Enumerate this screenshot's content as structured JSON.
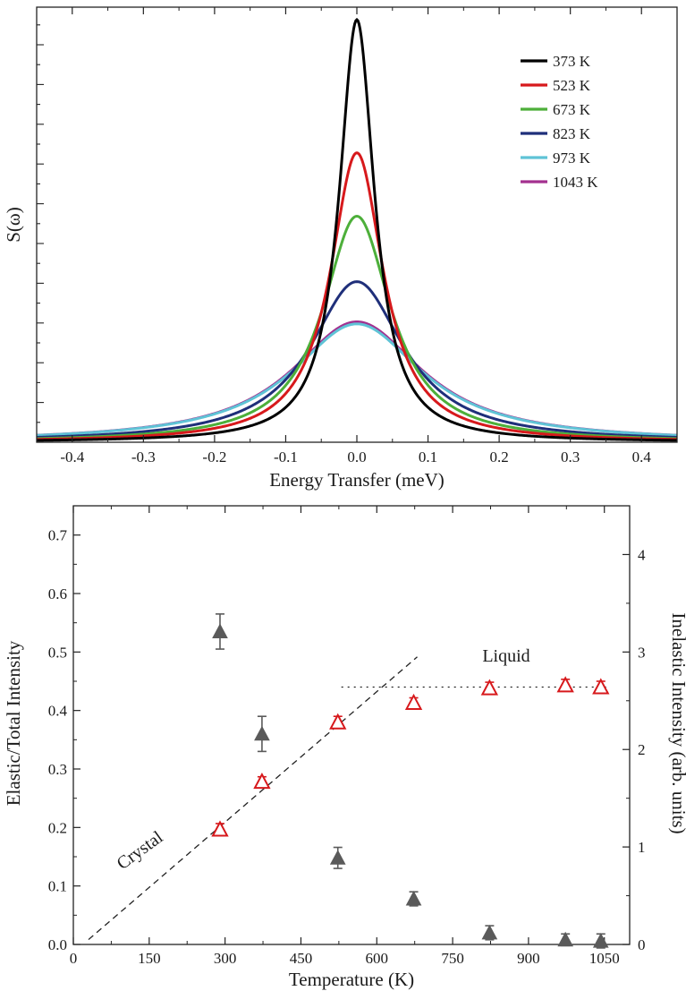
{
  "chart_data": [
    {
      "type": "line",
      "title": "",
      "xlabel": "Energy Transfer (meV)",
      "ylabel": "S(ω)",
      "xlim": [
        -0.45,
        0.45
      ],
      "ylim": [
        0,
        1.0
      ],
      "x_ticks": [
        "-0.4",
        "-0.3",
        "-0.2",
        "-0.1",
        "0.0",
        "0.1",
        "0.2",
        "0.3",
        "0.4"
      ],
      "y_tick_labels_shown": false,
      "legend_position": "top-right",
      "series": [
        {
          "name": "373 K",
          "color": "#000000",
          "peak": 1.0,
          "hwhm": 0.03
        },
        {
          "name": "523 K",
          "color": "#d7191c",
          "peak": 0.685,
          "hwhm": 0.045
        },
        {
          "name": "673 K",
          "color": "#4daf3a",
          "peak": 0.535,
          "hwhm": 0.058
        },
        {
          "name": "823 K",
          "color": "#1f2f7a",
          "peak": 0.38,
          "hwhm": 0.08
        },
        {
          "name": "973 K",
          "color": "#5fc3d6",
          "peak": 0.28,
          "hwhm": 0.112
        },
        {
          "name": "1043 K",
          "color": "#a3308f",
          "peak": 0.285,
          "hwhm": 0.112
        }
      ]
    },
    {
      "type": "scatter",
      "title": "",
      "xlabel": "Temperature (K)",
      "ylabel": "Elastic/Total Intensity",
      "ylabel_right": "Inelastic Intensity (arb. units)",
      "xlim": [
        0,
        1100
      ],
      "ylim": [
        0,
        0.75
      ],
      "ylim_right": [
        0,
        4.5
      ],
      "x_ticks": [
        "0",
        "150",
        "300",
        "450",
        "600",
        "750",
        "900",
        "1050"
      ],
      "y_ticks": [
        "0.0",
        "0.1",
        "0.2",
        "0.3",
        "0.4",
        "0.5",
        "0.6",
        "0.7"
      ],
      "y_ticks_right": [
        "0",
        "1",
        "2",
        "3",
        "4"
      ],
      "series": [
        {
          "name": "Elastic/Total Intensity",
          "axis": "left",
          "marker": "filled-triangle",
          "color": "#5a5a5a",
          "x": [
            290,
            373,
            523,
            673,
            823,
            973,
            1043
          ],
          "y": [
            0.535,
            0.36,
            0.148,
            0.078,
            0.02,
            0.008,
            0.006
          ],
          "err": [
            0.03,
            0.03,
            0.018,
            0.012,
            0.012,
            0.01,
            0.012
          ]
        },
        {
          "name": "Inelastic Intensity",
          "axis": "right",
          "marker": "open-triangle",
          "color": "#d7191c",
          "x": [
            290,
            373,
            523,
            673,
            823,
            973,
            1043
          ],
          "y": [
            1.18,
            1.67,
            2.28,
            2.48,
            2.63,
            2.66,
            2.64
          ],
          "err": [
            0.06,
            0.05,
            0.06,
            0.05,
            0.06,
            0.06,
            0.06
          ]
        }
      ],
      "lines": [
        {
          "name": "crystal-trend",
          "style": "dashed",
          "axis": "right",
          "x": [
            30,
            680
          ],
          "y": [
            0.05,
            2.95
          ]
        },
        {
          "name": "liquid-level",
          "style": "dotted",
          "axis": "right",
          "x": [
            530,
            1060
          ],
          "y": [
            2.64,
            2.64
          ]
        }
      ],
      "annotations": {
        "crystal": "Crystal",
        "liquid": "Liquid"
      }
    }
  ]
}
